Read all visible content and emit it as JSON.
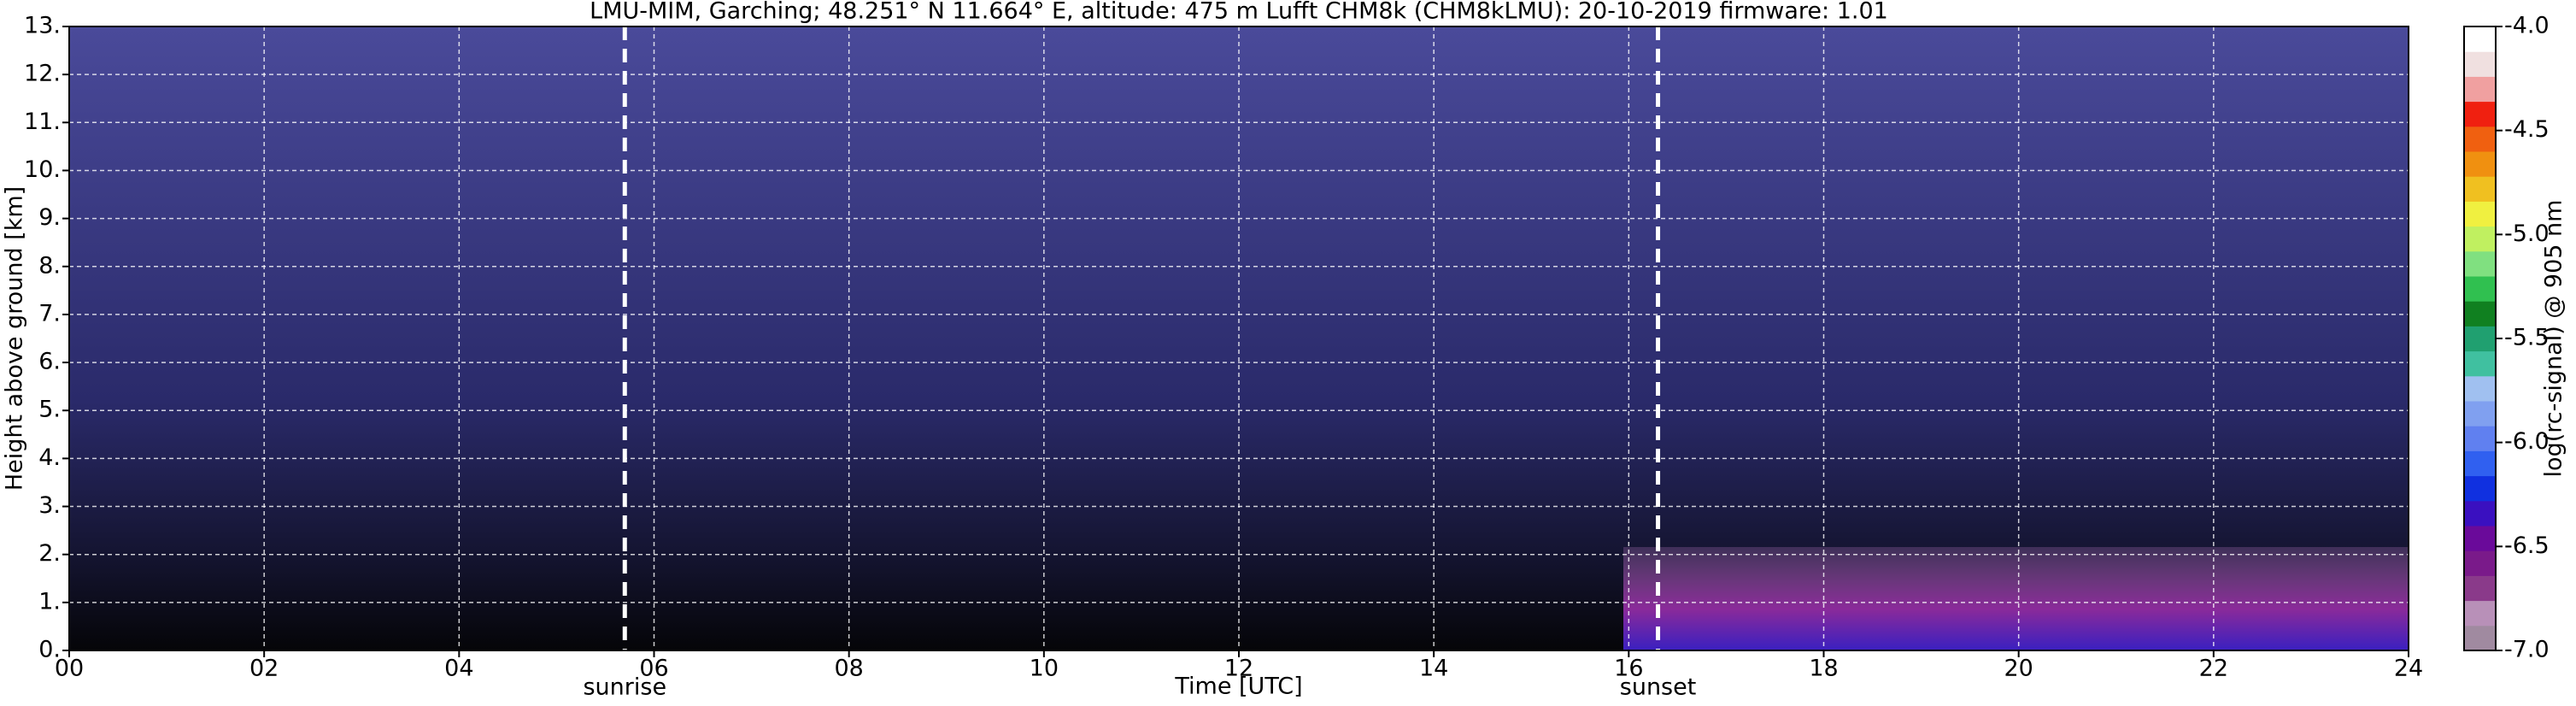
{
  "chart_data": {
    "type": "heatmap",
    "title": "LMU-MIM, Garching; 48.251° N 11.664° E, altitude: 475 m    Lufft CHM8k (CHM8kLMU): 20-10-2019    firmware: 1.01",
    "xlabel": "Time [UTC]",
    "ylabel": "Height above ground [km]",
    "xlim": [
      0,
      24
    ],
    "xticks": [
      {
        "value": 0,
        "label": "00"
      },
      {
        "value": 2,
        "label": "02"
      },
      {
        "value": 4,
        "label": "04"
      },
      {
        "value": 6,
        "label": "06"
      },
      {
        "value": 8,
        "label": "08"
      },
      10,
      12,
      14,
      16,
      18,
      20,
      22,
      24
    ],
    "ylim": [
      0,
      13
    ],
    "yticks": [
      {
        "value": 0,
        "label": "0."
      },
      {
        "value": 1,
        "label": "1."
      },
      {
        "value": 2,
        "label": "2."
      },
      {
        "value": 3,
        "label": "3."
      },
      {
        "value": 4,
        "label": "4."
      },
      {
        "value": 5,
        "label": "5."
      },
      {
        "value": 6,
        "label": "6."
      },
      {
        "value": 7,
        "label": "7."
      },
      {
        "value": 8,
        "label": "8."
      },
      {
        "value": 9,
        "label": "9."
      },
      {
        "value": 10,
        "label": "10."
      },
      {
        "value": 11,
        "label": "11."
      },
      {
        "value": 12,
        "label": "12."
      },
      {
        "value": 13,
        "label": "13."
      }
    ],
    "grid": true,
    "annotations": [
      {
        "label": "sunrise",
        "x": 5.7
      },
      {
        "label": "sunset",
        "x": 16.3
      }
    ],
    "colorbar": {
      "label": "log(rc-signal) @ 905 nm",
      "lim": [
        -7,
        -4
      ],
      "ticks": [
        {
          "value": -4,
          "label": "-4.0"
        },
        -4.5,
        {
          "value": -5,
          "label": "-5.0"
        },
        -5.5,
        {
          "value": -6,
          "label": "-6.0"
        },
        -6.5,
        {
          "value": -7,
          "label": "-7.0"
        }
      ],
      "colors": [
        "#a08aa0",
        "#b890b8",
        "#8a3a8a",
        "#7a1a8a",
        "#6a0a9a",
        "#3a10c0",
        "#1030e0",
        "#3060f0",
        "#6080f0",
        "#80a0f0",
        "#a0c0f0",
        "#40c0a0",
        "#20a070",
        "#108020",
        "#30c050",
        "#80e080",
        "#c0f060",
        "#f0f040",
        "#f0c020",
        "#f09010",
        "#f06010",
        "#f02010",
        "#f0a0a0",
        "#f0e0e0",
        "#ffffff"
      ]
    }
  }
}
